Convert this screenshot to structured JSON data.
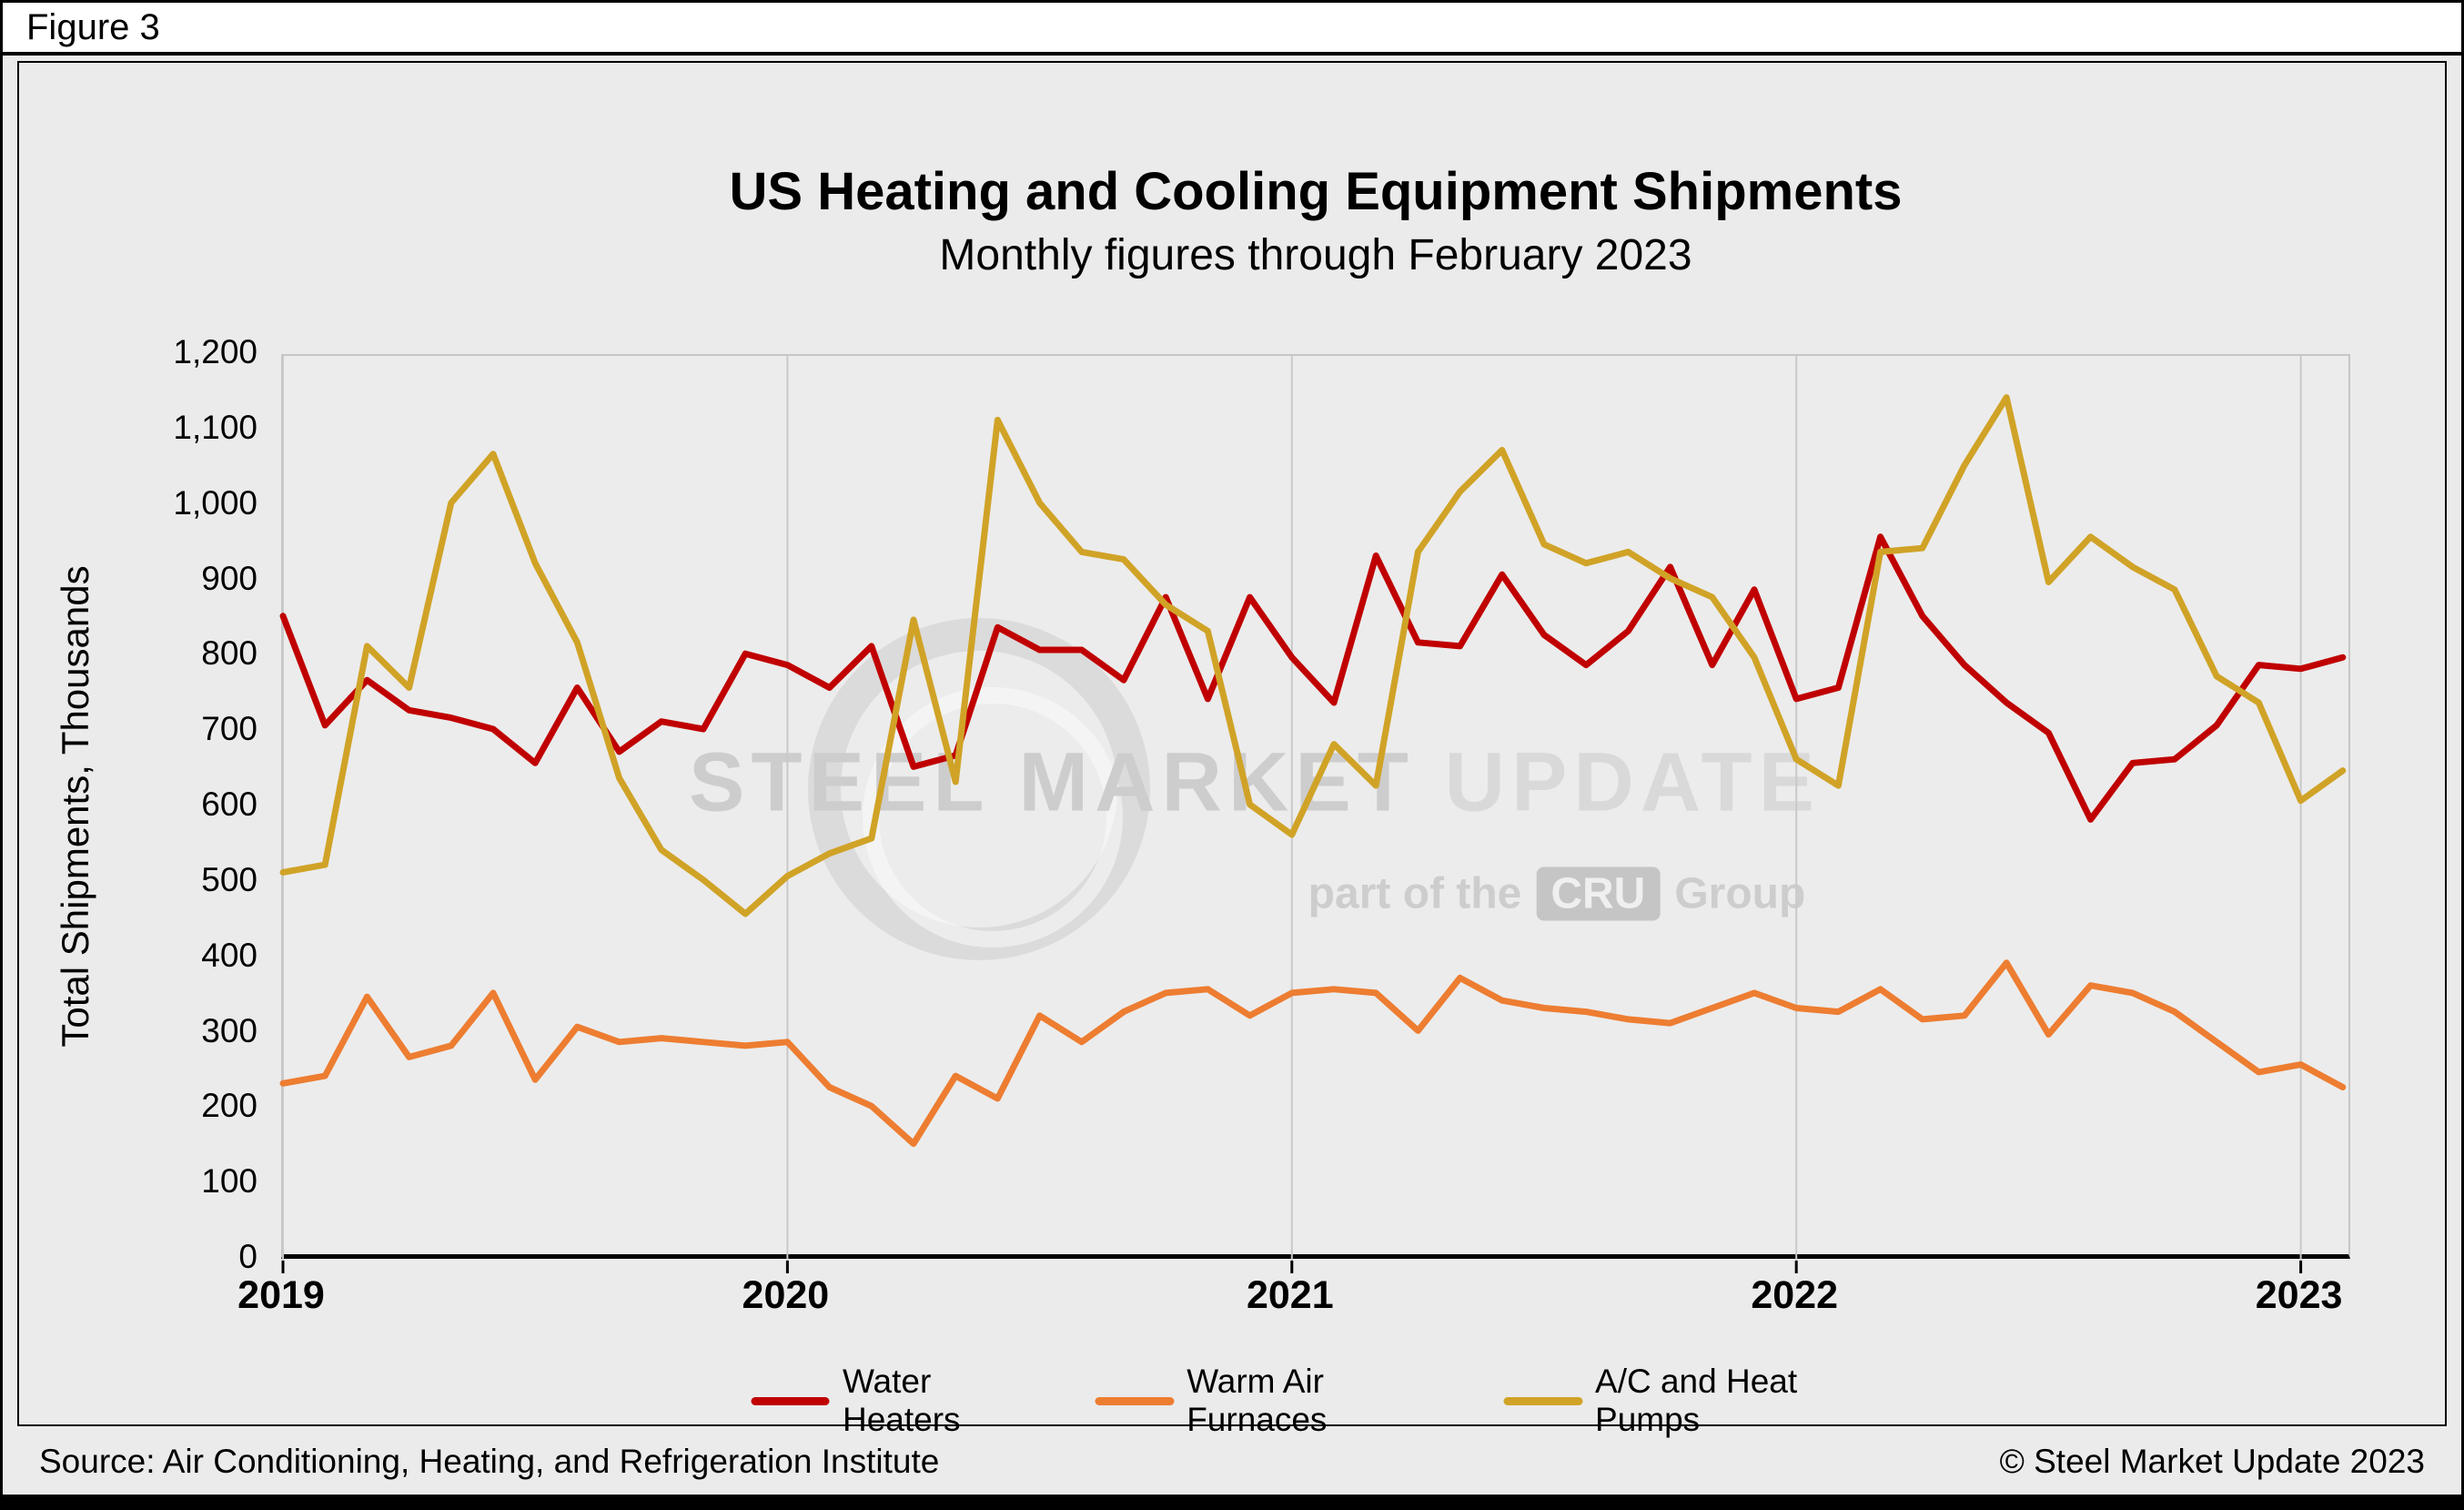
{
  "figure_label": "Figure 3",
  "chart_data": {
    "type": "line",
    "title": "US Heating and Cooling Equipment Shipments",
    "subtitle": "Monthly figures through February 2023",
    "xlabel": "",
    "ylabel": "Total Shipments, Thousands",
    "ylim": [
      0,
      1200
    ],
    "ytick_step": 100,
    "ytick_labels": [
      "0",
      "100",
      "200",
      "300",
      "400",
      "500",
      "600",
      "700",
      "800",
      "900",
      "1,000",
      "1,100",
      "1,200"
    ],
    "xtick_labels": [
      "2019",
      "2020",
      "2021",
      "2022",
      "2023"
    ],
    "grid": "vertical-year-lines",
    "legend_position": "bottom",
    "months": [
      "Jan 2019",
      "Feb 2019",
      "Mar 2019",
      "Apr 2019",
      "May 2019",
      "Jun 2019",
      "Jul 2019",
      "Aug 2019",
      "Sep 2019",
      "Oct 2019",
      "Nov 2019",
      "Dec 2019",
      "Jan 2020",
      "Feb 2020",
      "Mar 2020",
      "Apr 2020",
      "May 2020",
      "Jun 2020",
      "Jul 2020",
      "Aug 2020",
      "Sep 2020",
      "Oct 2020",
      "Nov 2020",
      "Dec 2020",
      "Jan 2021",
      "Feb 2021",
      "Mar 2021",
      "Apr 2021",
      "May 2021",
      "Jun 2021",
      "Jul 2021",
      "Aug 2021",
      "Sep 2021",
      "Oct 2021",
      "Nov 2021",
      "Dec 2021",
      "Jan 2022",
      "Feb 2022",
      "Mar 2022",
      "Apr 2022",
      "May 2022",
      "Jun 2022",
      "Jul 2022",
      "Aug 2022",
      "Sep 2022",
      "Oct 2022",
      "Nov 2022",
      "Dec 2022",
      "Jan 2023",
      "Feb 2023"
    ],
    "series": [
      {
        "name": "Water Heaters",
        "color": "#C00000",
        "values": [
          855,
          710,
          770,
          730,
          720,
          705,
          660,
          760,
          675,
          715,
          705,
          805,
          790,
          760,
          815,
          655,
          670,
          840,
          810,
          810,
          770,
          880,
          745,
          880,
          800,
          740,
          935,
          820,
          815,
          910,
          830,
          790,
          835,
          920,
          790,
          890,
          745,
          760,
          960,
          855,
          790,
          740,
          700,
          585,
          660,
          665,
          710,
          790,
          785,
          800
        ]
      },
      {
        "name": "Warm Air Furnaces",
        "color": "#ED7D31",
        "values": [
          235,
          245,
          350,
          270,
          285,
          355,
          240,
          310,
          290,
          295,
          290,
          285,
          290,
          230,
          205,
          155,
          245,
          215,
          325,
          290,
          330,
          355,
          360,
          325,
          355,
          360,
          355,
          305,
          375,
          345,
          335,
          330,
          320,
          315,
          335,
          355,
          335,
          330,
          360,
          320,
          325,
          395,
          300,
          365,
          355,
          330,
          290,
          250,
          260,
          230
        ]
      },
      {
        "name": "A/C and Heat Pumps",
        "color": "#D0A327",
        "values": [
          515,
          525,
          815,
          760,
          1005,
          1070,
          925,
          820,
          640,
          545,
          505,
          460,
          510,
          540,
          560,
          850,
          635,
          1115,
          1005,
          940,
          930,
          870,
          835,
          605,
          565,
          685,
          630,
          940,
          1020,
          1075,
          950,
          925,
          940,
          905,
          880,
          800,
          665,
          630,
          940,
          945,
          1055,
          1145,
          900,
          960,
          920,
          890,
          775,
          740,
          610,
          650
        ]
      }
    ]
  },
  "watermark": {
    "line1_part1": "STEEL MARKET",
    "line1_part2": " UPDATE",
    "line2_prefix": "part of the",
    "line2_box": "CRU",
    "line2_suffix": "Group"
  },
  "footer": {
    "source": "Source: Air Conditioning, Heating, and Refrigeration Institute",
    "copyright": "© Steel Market Update 2023"
  }
}
